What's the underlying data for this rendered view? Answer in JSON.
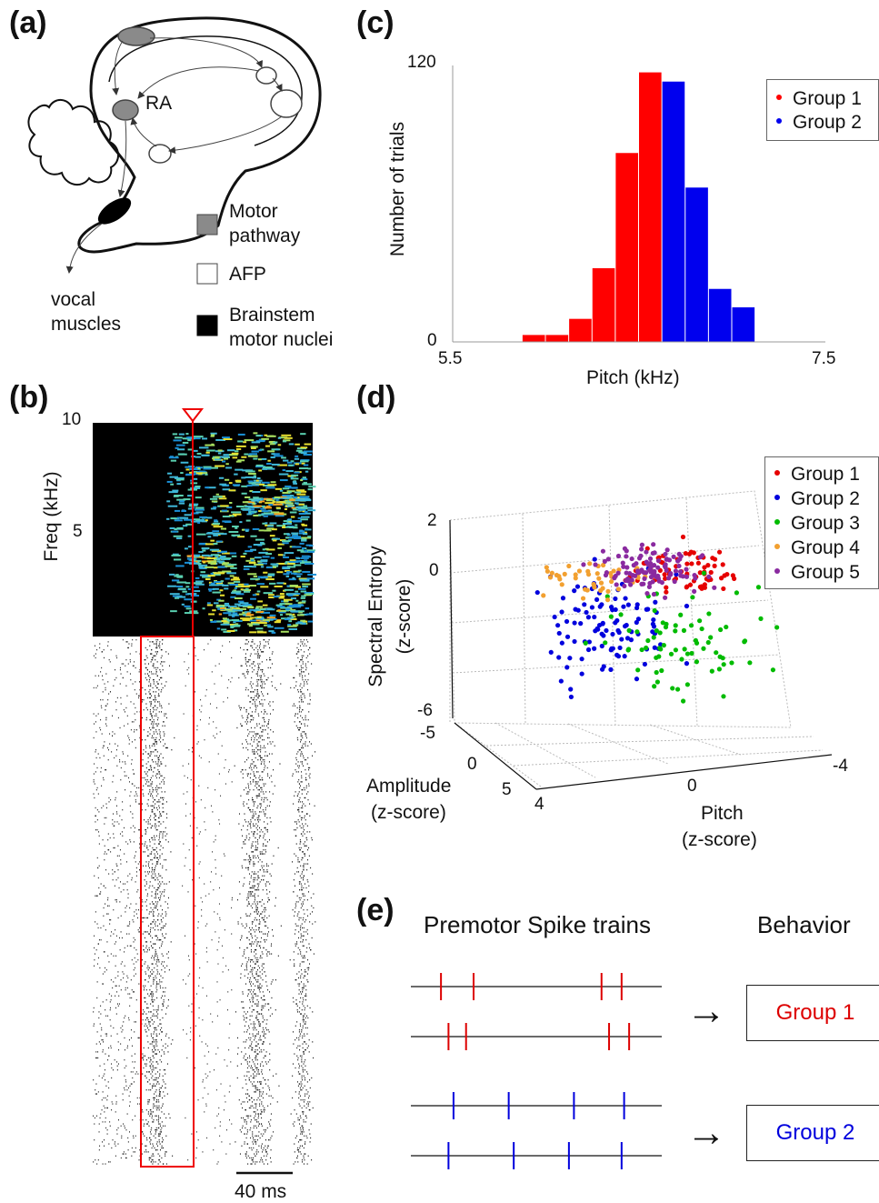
{
  "panels": {
    "a": {
      "label": "(a)",
      "ra_label": "RA",
      "vocal_muscles_line1": "vocal",
      "vocal_muscles_line2": "muscles",
      "legend": {
        "motor_line1": "Motor",
        "motor_line2": "pathway",
        "afp": "AFP",
        "brainstem_line1": "Brainstem",
        "brainstem_line2": "motor nuclei"
      },
      "colors": {
        "motor": "#8a8a8a",
        "afp": "#ffffff",
        "brainstem": "#000000"
      }
    },
    "b": {
      "label": "(b)",
      "ylabel": "Freq (kHz)",
      "yticks": [
        "10",
        "5"
      ],
      "scale_bar_label": "40 ms"
    },
    "c": {
      "label": "(c)",
      "xlabel": "Pitch (kHz)",
      "ylabel": "Number of trials",
      "xticks": [
        "5.5",
        "7.5"
      ],
      "yticks": [
        "120",
        "0"
      ]
    },
    "d": {
      "label": "(d)",
      "zlabel_line1": "Spectral Entropy",
      "zlabel_line2": "(z-score)",
      "amp_label_line1": "Amplitude",
      "amp_label_line2": "(z-score)",
      "pitch_label_line1": "Pitch",
      "pitch_label_line2": "(z-score)",
      "zticks": [
        "2",
        "0",
        "-6"
      ],
      "amp_ticks": [
        "-5",
        "0",
        "5"
      ],
      "pitch_ticks": [
        "4",
        "0",
        "-4"
      ]
    },
    "e": {
      "label": "(e)",
      "col1_header": "Premotor Spike trains",
      "col2_header": "Behavior",
      "group1": "Group 1",
      "group2": "Group 2",
      "arrow_glyph": "→"
    }
  },
  "chart_data": [
    {
      "type": "bar",
      "panel": "c",
      "xlabel": "Pitch (kHz)",
      "ylabel": "Number of trials",
      "xlim": [
        5.5,
        7.5
      ],
      "ylim": [
        0,
        120
      ],
      "bin_width": 0.125,
      "series": [
        {
          "name": "Group 1",
          "color": "#ff0000",
          "bin_starts": [
            5.875,
            6.0,
            6.125,
            6.25,
            6.375,
            6.5
          ],
          "values": [
            3,
            3,
            10,
            32,
            82,
            117
          ]
        },
        {
          "name": "Group 2",
          "color": "#0000ee",
          "bin_starts": [
            6.625,
            6.75,
            6.875,
            7.0
          ],
          "values": [
            113,
            67,
            23,
            15
          ]
        }
      ],
      "legend": [
        "Group 1",
        "Group 2"
      ],
      "legend_position": "top-right"
    },
    {
      "type": "scatter",
      "panel": "d",
      "dimensions": 3,
      "axes": {
        "x": "Pitch (z-score)",
        "y": "Amplitude (z-score)",
        "z": "Spectral Entropy (z-score)"
      },
      "xlim": [
        -4,
        4
      ],
      "ylim": [
        -5,
        5
      ],
      "zlim": [
        -6,
        2
      ],
      "series": [
        {
          "name": "Group 1",
          "color": "#e60000"
        },
        {
          "name": "Group 2",
          "color": "#0000dd"
        },
        {
          "name": "Group 3",
          "color": "#00bb00"
        },
        {
          "name": "Group 4",
          "color": "#f2a030"
        },
        {
          "name": "Group 5",
          "color": "#8a2aa0"
        }
      ],
      "legend": [
        "Group 1",
        "Group 2",
        "Group 3",
        "Group 4",
        "Group 5"
      ],
      "legend_position": "top-right",
      "grid": true
    }
  ],
  "spike_trains": [
    {
      "group": "Group 1",
      "color": "#dd0000",
      "spikes": [
        [
          0.12,
          0.25,
          0.76,
          0.84
        ],
        [
          0.15,
          0.22,
          0.79,
          0.87
        ]
      ]
    },
    {
      "group": "Group 2",
      "color": "#0000dd",
      "spikes": [
        [
          0.17,
          0.39,
          0.65,
          0.85
        ],
        [
          0.15,
          0.41,
          0.63,
          0.84
        ]
      ]
    }
  ]
}
